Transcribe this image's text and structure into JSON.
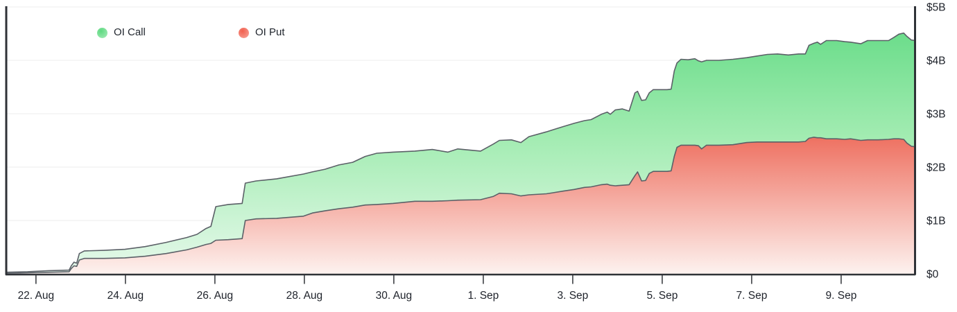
{
  "chart_data": {
    "type": "area",
    "stacked": true,
    "unit": "USD billions",
    "line_color": "#5b6067",
    "grid_color": "#ededed",
    "axis_color": "#2f3237",
    "label_color": "#20242c",
    "series": [
      {
        "name": "OI Put",
        "color_top": "#ee6f5f",
        "color_bottom": "#fdf2ef",
        "legend_dot": "#f1604f",
        "legend_dot_light": "#f8a79d"
      },
      {
        "name": "OI Call",
        "color_top": "#69dc89",
        "color_mid": "#a3ecb2",
        "color_bottom": "#e7f9ec",
        "legend_dot": "#5ed981",
        "legend_dot_light": "#a9ecba"
      }
    ],
    "x_axis": {
      "min_day": -0.68,
      "max_day": 19.66,
      "ticks": [
        {
          "d": 0,
          "label": "22. Aug"
        },
        {
          "d": 2,
          "label": "24. Aug"
        },
        {
          "d": 4,
          "label": "26. Aug"
        },
        {
          "d": 6,
          "label": "28. Aug"
        },
        {
          "d": 8,
          "label": "30. Aug"
        },
        {
          "d": 10,
          "label": "1. Sep"
        },
        {
          "d": 12,
          "label": "3. Sep"
        },
        {
          "d": 14,
          "label": "5. Sep"
        },
        {
          "d": 16,
          "label": "7. Sep"
        },
        {
          "d": 18,
          "label": "9. Sep"
        }
      ]
    },
    "y_axis": {
      "min": 0,
      "max": 5,
      "ticks": [
        {
          "v": 0,
          "label": "$0"
        },
        {
          "v": 1,
          "label": "$1B"
        },
        {
          "v": 2,
          "label": "$2B"
        },
        {
          "v": 3,
          "label": "$3B"
        },
        {
          "v": 4,
          "label": "$4B"
        },
        {
          "v": 5,
          "label": "$5B"
        }
      ]
    },
    "points": [
      {
        "d": -0.68,
        "put": 0.01,
        "call": 0.02
      },
      {
        "d": -0.19,
        "put": 0.02,
        "call": 0.02
      },
      {
        "d": 0.28,
        "put": 0.03,
        "call": 0.03
      },
      {
        "d": 0.74,
        "put": 0.04,
        "call": 0.03
      },
      {
        "d": 0.79,
        "put": 0.1,
        "call": 0.05
      },
      {
        "d": 0.85,
        "put": 0.15,
        "call": 0.07
      },
      {
        "d": 0.91,
        "put": 0.14,
        "call": 0.06
      },
      {
        "d": 0.97,
        "put": 0.26,
        "call": 0.12
      },
      {
        "d": 1.08,
        "put": 0.29,
        "call": 0.14
      },
      {
        "d": 1.52,
        "put": 0.29,
        "call": 0.15
      },
      {
        "d": 1.99,
        "put": 0.3,
        "call": 0.16
      },
      {
        "d": 2.44,
        "put": 0.33,
        "call": 0.18
      },
      {
        "d": 2.91,
        "put": 0.38,
        "call": 0.21
      },
      {
        "d": 3.37,
        "put": 0.45,
        "call": 0.23
      },
      {
        "d": 3.6,
        "put": 0.5,
        "call": 0.24
      },
      {
        "d": 3.8,
        "put": 0.55,
        "call": 0.3
      },
      {
        "d": 3.91,
        "put": 0.57,
        "call": 0.32
      },
      {
        "d": 4.02,
        "put": 0.63,
        "call": 0.63
      },
      {
        "d": 4.3,
        "put": 0.64,
        "call": 0.66
      },
      {
        "d": 4.61,
        "put": 0.66,
        "call": 0.66
      },
      {
        "d": 4.68,
        "put": 1.0,
        "call": 0.7
      },
      {
        "d": 4.92,
        "put": 1.03,
        "call": 0.71
      },
      {
        "d": 5.38,
        "put": 1.04,
        "call": 0.74
      },
      {
        "d": 5.98,
        "put": 1.08,
        "call": 0.79
      },
      {
        "d": 6.18,
        "put": 1.14,
        "call": 0.77
      },
      {
        "d": 6.46,
        "put": 1.18,
        "call": 0.78
      },
      {
        "d": 6.77,
        "put": 1.22,
        "call": 0.82
      },
      {
        "d": 7.08,
        "put": 1.25,
        "call": 0.84
      },
      {
        "d": 7.36,
        "put": 1.29,
        "call": 0.91
      },
      {
        "d": 7.62,
        "put": 1.3,
        "call": 0.96
      },
      {
        "d": 7.98,
        "put": 1.32,
        "call": 0.96
      },
      {
        "d": 8.47,
        "put": 1.36,
        "call": 0.94
      },
      {
        "d": 8.86,
        "put": 1.36,
        "call": 0.97
      },
      {
        "d": 9.21,
        "put": 1.37,
        "call": 0.91
      },
      {
        "d": 9.43,
        "put": 1.38,
        "call": 0.96
      },
      {
        "d": 9.94,
        "put": 1.39,
        "call": 0.91
      },
      {
        "d": 10.22,
        "put": 1.45,
        "call": 0.98
      },
      {
        "d": 10.36,
        "put": 1.51,
        "call": 0.99
      },
      {
        "d": 10.63,
        "put": 1.5,
        "call": 1.01
      },
      {
        "d": 10.84,
        "put": 1.46,
        "call": 1.0
      },
      {
        "d": 11.02,
        "put": 1.48,
        "call": 1.09
      },
      {
        "d": 11.41,
        "put": 1.5,
        "call": 1.16
      },
      {
        "d": 11.56,
        "put": 1.52,
        "call": 1.18
      },
      {
        "d": 11.79,
        "put": 1.55,
        "call": 1.21
      },
      {
        "d": 12.03,
        "put": 1.58,
        "call": 1.24
      },
      {
        "d": 12.26,
        "put": 1.62,
        "call": 1.25
      },
      {
        "d": 12.41,
        "put": 1.63,
        "call": 1.26
      },
      {
        "d": 12.64,
        "put": 1.67,
        "call": 1.32
      },
      {
        "d": 12.77,
        "put": 1.68,
        "call": 1.35
      },
      {
        "d": 12.84,
        "put": 1.66,
        "call": 1.33
      },
      {
        "d": 12.95,
        "put": 1.65,
        "call": 1.42
      },
      {
        "d": 13.11,
        "put": 1.66,
        "call": 1.43
      },
      {
        "d": 13.26,
        "put": 1.67,
        "call": 1.38
      },
      {
        "d": 13.39,
        "put": 1.84,
        "call": 1.55
      },
      {
        "d": 13.45,
        "put": 1.91,
        "call": 1.51
      },
      {
        "d": 13.54,
        "put": 1.74,
        "call": 1.51
      },
      {
        "d": 13.63,
        "put": 1.75,
        "call": 1.51
      },
      {
        "d": 13.71,
        "put": 1.88,
        "call": 1.51
      },
      {
        "d": 13.8,
        "put": 1.92,
        "call": 1.53
      },
      {
        "d": 14.11,
        "put": 1.92,
        "call": 1.53
      },
      {
        "d": 14.2,
        "put": 1.93,
        "call": 1.53
      },
      {
        "d": 14.27,
        "put": 2.2,
        "call": 1.6
      },
      {
        "d": 14.33,
        "put": 2.37,
        "call": 1.58
      },
      {
        "d": 14.42,
        "put": 2.41,
        "call": 1.61
      },
      {
        "d": 14.58,
        "put": 2.41,
        "call": 1.6
      },
      {
        "d": 14.73,
        "put": 2.41,
        "call": 1.62
      },
      {
        "d": 14.81,
        "put": 2.4,
        "call": 1.59
      },
      {
        "d": 14.88,
        "put": 2.34,
        "call": 1.63
      },
      {
        "d": 14.99,
        "put": 2.41,
        "call": 1.59
      },
      {
        "d": 15.27,
        "put": 2.41,
        "call": 1.59
      },
      {
        "d": 15.58,
        "put": 2.42,
        "call": 1.6
      },
      {
        "d": 15.89,
        "put": 2.46,
        "call": 1.59
      },
      {
        "d": 16.12,
        "put": 2.47,
        "call": 1.61
      },
      {
        "d": 16.35,
        "put": 2.47,
        "call": 1.64
      },
      {
        "d": 16.58,
        "put": 2.47,
        "call": 1.65
      },
      {
        "d": 16.82,
        "put": 2.47,
        "call": 1.63
      },
      {
        "d": 17.05,
        "put": 2.47,
        "call": 1.65
      },
      {
        "d": 17.2,
        "put": 2.48,
        "call": 1.64
      },
      {
        "d": 17.28,
        "put": 2.54,
        "call": 1.74
      },
      {
        "d": 17.39,
        "put": 2.56,
        "call": 1.76
      },
      {
        "d": 17.47,
        "put": 2.55,
        "call": 1.79
      },
      {
        "d": 17.54,
        "put": 2.55,
        "call": 1.75
      },
      {
        "d": 17.67,
        "put": 2.53,
        "call": 1.84
      },
      {
        "d": 17.9,
        "put": 2.53,
        "call": 1.84
      },
      {
        "d": 18.08,
        "put": 2.52,
        "call": 1.83
      },
      {
        "d": 18.21,
        "put": 2.53,
        "call": 1.81
      },
      {
        "d": 18.44,
        "put": 2.5,
        "call": 1.81
      },
      {
        "d": 18.59,
        "put": 2.51,
        "call": 1.86
      },
      {
        "d": 18.83,
        "put": 2.51,
        "call": 1.86
      },
      {
        "d": 19.06,
        "put": 2.52,
        "call": 1.85
      },
      {
        "d": 19.18,
        "put": 2.53,
        "call": 1.9
      },
      {
        "d": 19.29,
        "put": 2.53,
        "call": 1.96
      },
      {
        "d": 19.4,
        "put": 2.52,
        "call": 1.99
      },
      {
        "d": 19.47,
        "put": 2.45,
        "call": 2.0
      },
      {
        "d": 19.57,
        "put": 2.39,
        "call": 1.99
      },
      {
        "d": 19.66,
        "put": 2.38,
        "call": 1.99
      }
    ]
  }
}
